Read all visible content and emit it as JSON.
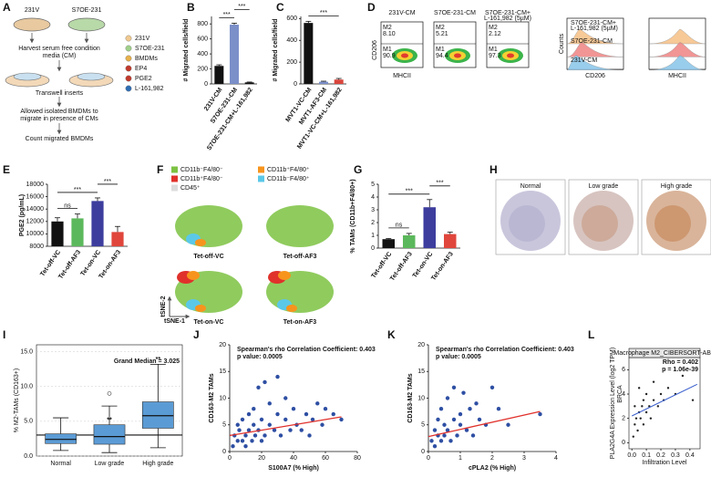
{
  "panel_a": {
    "label": "A",
    "dish_labels": [
      "231V",
      "S7OE-231"
    ],
    "steps": [
      "Harvest serum free condition",
      "media (CM)",
      "Transwell inserts",
      "Allowed isolated BMDMs to",
      "migrate in presence of CMs",
      "Count migrated BMDMs"
    ],
    "legend": [
      "231V",
      "S7OE-231",
      "BMDMs",
      "EP4",
      "PGE2",
      "L-161,982"
    ]
  },
  "panel_d": {
    "label": "D",
    "plots": [
      {
        "title": "231V-CM",
        "m2": "M2",
        "m2_value": "8.10",
        "m1": "M1",
        "m1_value": "90.9"
      },
      {
        "title": "S7OE-231-CM",
        "m2": "M2",
        "m2_value": "5.21",
        "m1": "M1",
        "m1_value": "94.4"
      },
      {
        "title": "S7OE-231-CM+",
        "title2": "L-161,982 (5µM)",
        "m2": "M2",
        "m2_value": "2.12",
        "m1": "M1",
        "m1_value": "97.3"
      }
    ],
    "y_axis": "CD206",
    "x_axis": "MHCII",
    "hist_legend": [
      "S7OE-231-CM+",
      "L-161,982 (5µM)",
      "S7OE-231-CM",
      "231V-CM"
    ],
    "hist_y": "Counts",
    "hist_x": [
      "CD206",
      "MHCII"
    ]
  },
  "panel_f": {
    "label": "F",
    "legend": [
      {
        "text": "CD11b⁻F4/80⁻",
        "color": "#7dc242"
      },
      {
        "text": "CD11b⁺F4/80⁺",
        "color": "#f7941d"
      },
      {
        "text": "CD11b⁺F4/80⁻",
        "color": "#e0312b"
      },
      {
        "text": "CD11b⁻F4/80⁺",
        "color": "#5bc8e8"
      },
      {
        "text": "CD45⁺",
        "color": "#dcdcdc"
      }
    ],
    "plots": [
      "Tet-off-VC",
      "Tet-off-AF3",
      "Tet-on-VC",
      "Tet-on-AF3"
    ],
    "x_axis": "tSNE-1",
    "y_axis": "tSNE-2"
  },
  "panel_h": {
    "label": "H",
    "images": [
      "Normal",
      "Low grade",
      "High grade"
    ]
  },
  "chart_data": [
    {
      "label": "B",
      "type": "bar",
      "categories": [
        "231V-CM",
        "S7OE-231-CM",
        "S7OE-231-CM+L-161,982"
      ],
      "values": [
        240,
        790,
        20
      ],
      "errors": [
        15,
        20,
        5
      ],
      "colors": [
        "#111111",
        "#7b8fc9",
        "#111111"
      ],
      "y_label": "# Migrated cells/field",
      "ylim": [
        0,
        900
      ],
      "yticks": [
        0,
        200,
        400,
        600,
        800
      ],
      "significance": [
        "***",
        "***"
      ]
    },
    {
      "label": "C",
      "type": "bar",
      "categories": [
        "MVT1-VC-CM",
        "MVT1-AF3-CM",
        "MVT1-VC-CM+L-161,982"
      ],
      "values": [
        560,
        20,
        40
      ],
      "errors": [
        15,
        5,
        10
      ],
      "colors": [
        "#111111",
        "#7b8fc9",
        "#d9453c"
      ],
      "y_label": "# Migrated cells/field",
      "ylim": [
        0,
        620
      ],
      "yticks": [
        0,
        200,
        400,
        600
      ],
      "significance": [
        "***"
      ]
    },
    {
      "label": "E",
      "type": "bar",
      "categories": [
        "Tet-off-VC",
        "Tet-off-AF3",
        "Tet-on-VC",
        "Tet-on-AF3"
      ],
      "values": [
        12000,
        12500,
        15300,
        10300
      ],
      "errors": [
        600,
        700,
        500,
        900
      ],
      "colors": [
        "#111111",
        "#5cb85c",
        "#3d3d9e",
        "#e0463c"
      ],
      "y_label": "PGE2 (pg/mL)",
      "ylim": [
        8000,
        18000
      ],
      "yticks": [
        8000,
        10000,
        12000,
        14000,
        16000,
        18000
      ],
      "significance": [
        "ns",
        "***",
        "***"
      ]
    },
    {
      "label": "G",
      "type": "bar",
      "categories": [
        "Tet-off-VC",
        "Tet-off-AF3",
        "Tet-on-VC",
        "Tet-on-AF3"
      ],
      "values": [
        0.7,
        1.0,
        3.2,
        1.1
      ],
      "errors": [
        0.05,
        0.15,
        0.6,
        0.15
      ],
      "colors": [
        "#111111",
        "#5cb85c",
        "#3d3d9e",
        "#e0463c"
      ],
      "y_label": "% TAMs (CD11b+F4/80+)",
      "ylim": [
        0,
        5
      ],
      "yticks": [
        0,
        1,
        2,
        3,
        4,
        5
      ],
      "significance": [
        "ns",
        "***",
        "***"
      ]
    },
    {
      "label": "I",
      "type": "box",
      "categories": [
        "Normal",
        "Low grade",
        "High grade"
      ],
      "boxes": [
        {
          "min": 0.8,
          "q1": 1.8,
          "median": 2.4,
          "q3": 3.2,
          "max": 5.5
        },
        {
          "min": 0.5,
          "q1": 1.7,
          "median": 2.8,
          "q3": 4.5,
          "max": 7.2,
          "outliers": [
            9.0
          ]
        },
        {
          "min": 1.2,
          "q1": 4.0,
          "median": 5.8,
          "q3": 7.8,
          "max": 13.2
        }
      ],
      "color": "#5b9bd5",
      "y_label": "% M2-TAMs (CD163+)",
      "ylim": [
        0,
        16
      ],
      "yticks": [
        {
          "value": 0,
          "label": "0.0"
        },
        {
          "value": 5,
          "label": "5.0"
        },
        {
          "value": 10,
          "label": "10.0"
        },
        {
          "value": 15,
          "label": "15.0"
        }
      ],
      "reference": {
        "value": 3.025,
        "label": "Grand Median = 3.025"
      },
      "significance": [
        "**",
        "**"
      ],
      "grid": true
    },
    {
      "label": "J",
      "type": "scatter",
      "x": [
        2,
        3,
        5,
        5,
        6,
        8,
        8,
        10,
        10,
        12,
        12,
        14,
        15,
        15,
        16,
        18,
        18,
        20,
        20,
        22,
        22,
        25,
        25,
        28,
        30,
        30,
        32,
        35,
        35,
        38,
        40,
        42,
        45,
        48,
        50,
        52,
        55,
        58,
        60,
        65,
        70
      ],
      "y": [
        1,
        3,
        2,
        5,
        4,
        2,
        6,
        1,
        3,
        4,
        7,
        2,
        5,
        8,
        3,
        12,
        4,
        6,
        2,
        3,
        13,
        5,
        9,
        4,
        7,
        14,
        3,
        10,
        6,
        4,
        8,
        5,
        4,
        7,
        3,
        6,
        9,
        5,
        8,
        7,
        6
      ],
      "fit": {
        "x": [
          0,
          70
        ],
        "y": [
          3,
          6.5
        ]
      },
      "color": "#2e4fa3",
      "fit_color": "#e0312b",
      "x_label": "S100A7 (% High)",
      "y_label": "CD163-M2 TAMs",
      "xlim": [
        0,
        80
      ],
      "xticks": [
        0,
        20,
        40,
        60,
        80
      ],
      "ylim": [
        0,
        20
      ],
      "yticks": [
        0,
        5,
        10,
        15,
        20
      ],
      "annotations": [
        "Spearman's rho Correlation Coefficient: 0.403",
        "p value: 0.0005"
      ],
      "annotation_color": "#111111"
    },
    {
      "label": "K",
      "type": "scatter",
      "x": [
        0.1,
        0.2,
        0.2,
        0.3,
        0.3,
        0.4,
        0.4,
        0.5,
        0.5,
        0.6,
        0.6,
        0.7,
        0.8,
        0.8,
        0.9,
        1.0,
        1.0,
        1.1,
        1.2,
        1.3,
        1.4,
        1.5,
        1.6,
        1.8,
        2.0,
        2.2,
        2.5,
        3.5
      ],
      "y": [
        2,
        4,
        1,
        3,
        6,
        2,
        8,
        5,
        3,
        10,
        4,
        2,
        6,
        12,
        3,
        7,
        5,
        11,
        4,
        8,
        3,
        9,
        6,
        5,
        12,
        8,
        5,
        7
      ],
      "fit": {
        "x": [
          0,
          3.5
        ],
        "y": [
          2.8,
          7.5
        ]
      },
      "color": "#2e4fa3",
      "fit_color": "#e0312b",
      "x_label": "cPLA2 (% High)",
      "y_label": "CD163-M2 TAMs",
      "xlim": [
        0,
        4
      ],
      "xticks": [
        0,
        1,
        2,
        3,
        4
      ],
      "ylim": [
        0,
        20
      ],
      "yticks": [
        0,
        5,
        10,
        15,
        20
      ],
      "annotations": [
        "Spearman's rho Correlation Coefficient: 0.403",
        "p value: 0.0005"
      ],
      "annotation_color": "#111111"
    },
    {
      "label": "L",
      "type": "scatter",
      "title": "Macrophage M2_CIBERSORT-ABS",
      "side_label": "BRCA",
      "x": [
        0.01,
        0.02,
        0.02,
        0.03,
        0.04,
        0.05,
        0.05,
        0.06,
        0.07,
        0.08,
        0.08,
        0.1,
        0.1,
        0.12,
        0.13,
        0.15,
        0.15,
        0.18,
        0.2,
        0.22,
        0.25,
        0.3,
        0.35,
        0.42
      ],
      "y": [
        0.5,
        1.5,
        3.0,
        2.0,
        1.0,
        2.5,
        4.5,
        2.0,
        3.0,
        1.5,
        3.5,
        2.5,
        4.0,
        3.0,
        2.0,
        3.5,
        5.0,
        3.0,
        4.0,
        3.5,
        4.5,
        4.0,
        5.5,
        3.5
      ],
      "fit": {
        "x": [
          0,
          0.45
        ],
        "y": [
          2.2,
          4.8
        ]
      },
      "color": "#222222",
      "fit_color": "#3a5fcd",
      "x_label": "Infiltration Level",
      "y_label": "PLA2G4A Expression Level (log2 TPM)",
      "xlim": [
        -0.02,
        0.47
      ],
      "xticks": [
        {
          "value": 0,
          "label": "0.0"
        },
        {
          "value": 0.1,
          "label": "0.1"
        },
        {
          "value": 0.2,
          "label": "0.2"
        },
        {
          "value": 0.3,
          "label": "0.3"
        },
        {
          "value": 0.4,
          "label": "0.4"
        }
      ],
      "ylim": [
        -0.5,
        7
      ],
      "yticks": [
        0,
        2,
        4,
        6
      ],
      "annotations": [
        "Rho = 0.402",
        "p = 1.06e-39"
      ],
      "annotation_color": "#d0312d"
    }
  ]
}
